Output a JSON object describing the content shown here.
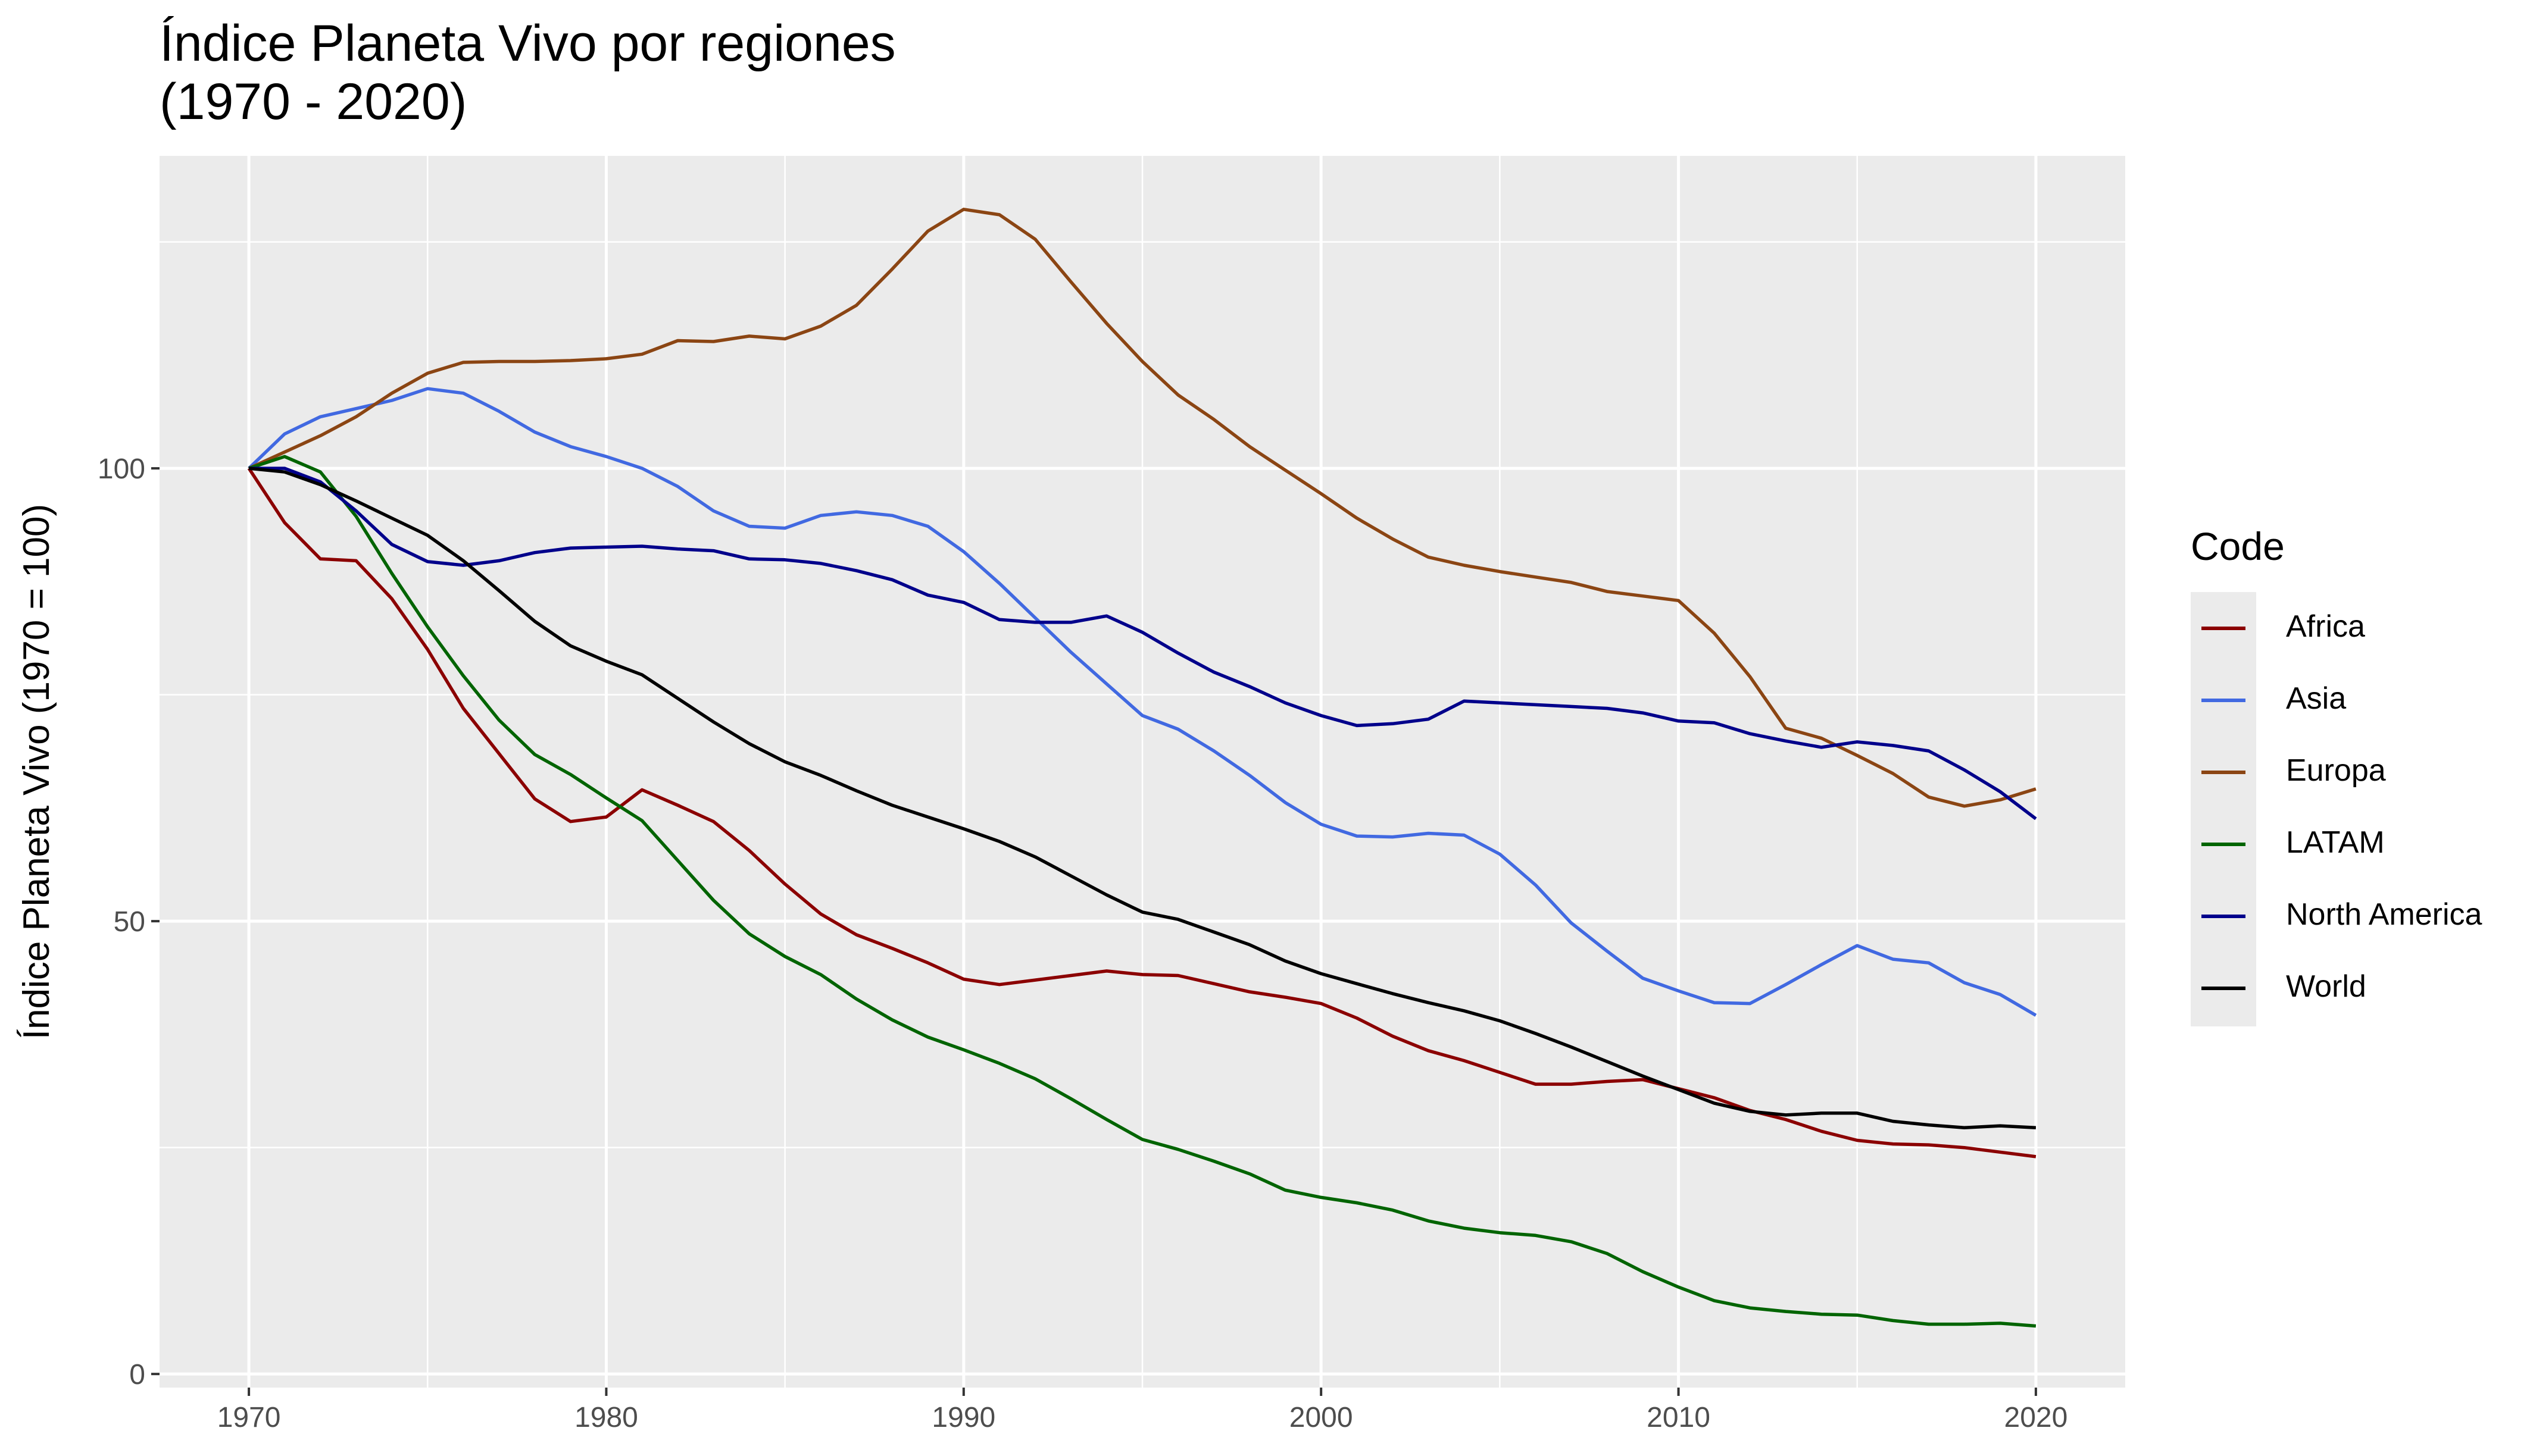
{
  "title_line1": "Índice Planeta Vivo por regiones",
  "title_line2": "(1970 - 2020)",
  "legend_title": "Code",
  "chart_data": {
    "type": "line",
    "title": "Índice Planeta Vivo por regiones\n(1970 - 2020)",
    "xlabel": "",
    "ylabel": "Índice Planeta Vivo (1970 = 100)",
    "xlim": [
      1967.5,
      2022.5
    ],
    "ylim": [
      -1.5,
      134.5
    ],
    "xticks": [
      1970,
      1980,
      1990,
      2000,
      2010,
      2020
    ],
    "yticks": [
      0,
      50,
      100
    ],
    "grid": true,
    "legend_position": "right",
    "x": [
      1970,
      1971,
      1972,
      1973,
      1974,
      1975,
      1976,
      1977,
      1978,
      1979,
      1980,
      1981,
      1982,
      1983,
      1984,
      1985,
      1986,
      1987,
      1988,
      1989,
      1990,
      1991,
      1992,
      1993,
      1994,
      1995,
      1996,
      1997,
      1998,
      1999,
      2000,
      2001,
      2002,
      2003,
      2004,
      2005,
      2006,
      2007,
      2008,
      2009,
      2010,
      2011,
      2012,
      2013,
      2014,
      2015,
      2016,
      2017,
      2018,
      2019,
      2020
    ],
    "series": [
      {
        "name": "Africa",
        "color": "#8b0000",
        "values": [
          100,
          94,
          90,
          89.8,
          85.6,
          80,
          73.5,
          68.5,
          63.5,
          61,
          61.5,
          64.5,
          62.8,
          61,
          57.8,
          54.1,
          50.8,
          48.5,
          47,
          45.4,
          43.6,
          43,
          43.5,
          44,
          44.5,
          44.1,
          44,
          43.1,
          42.2,
          41.6,
          40.9,
          39.3,
          37.3,
          35.7,
          34.6,
          33.3,
          32,
          32,
          32.3,
          32.5,
          31.5,
          30.5,
          29.1,
          28.1,
          26.8,
          25.8,
          25.4,
          25.3,
          25,
          24.5,
          24
        ]
      },
      {
        "name": "Asia",
        "color": "#4169e1",
        "values": [
          100,
          103.8,
          105.7,
          106.6,
          107.5,
          108.8,
          108.3,
          106.3,
          104,
          102.4,
          101.3,
          100,
          98,
          95.3,
          93.6,
          93.4,
          94.8,
          95.2,
          94.8,
          93.6,
          90.8,
          87.3,
          83.5,
          79.7,
          76.2,
          72.7,
          71.2,
          68.8,
          66.1,
          63.1,
          60.7,
          59.4,
          59.3,
          59.7,
          59.5,
          57.4,
          54,
          49.8,
          46.7,
          43.7,
          42.3,
          41,
          40.9,
          43,
          45.2,
          47.3,
          45.8,
          45.4,
          43.2,
          41.9,
          39.6
        ]
      },
      {
        "name": "Europa",
        "color": "#8b4513",
        "values": [
          100,
          101.8,
          103.6,
          105.7,
          108.3,
          110.5,
          111.7,
          111.8,
          111.8,
          111.9,
          112.1,
          112.6,
          114.1,
          114,
          114.6,
          114.3,
          115.7,
          118,
          122,
          126.2,
          128.6,
          128,
          125.3,
          120.6,
          116,
          111.8,
          108.1,
          105.4,
          102.4,
          99.8,
          97.2,
          94.5,
          92.2,
          90.2,
          89.3,
          88.6,
          88,
          87.4,
          86.4,
          85.9,
          85.4,
          81.8,
          77,
          71.3,
          70.2,
          68.3,
          66.3,
          63.7,
          62.7,
          63.4,
          64.6
        ]
      },
      {
        "name": "LATAM",
        "color": "#006400",
        "values": [
          100,
          101.3,
          99.6,
          94.7,
          88.4,
          82.5,
          77.1,
          72.2,
          68.4,
          66.2,
          63.6,
          61.1,
          56.7,
          52.3,
          48.6,
          46.1,
          44.1,
          41.4,
          39.1,
          37.2,
          35.8,
          34.3,
          32.6,
          30.4,
          28.1,
          25.9,
          24.8,
          23.5,
          22.1,
          20.3,
          19.5,
          18.9,
          18.1,
          16.9,
          16.1,
          15.6,
          15.3,
          14.6,
          13.3,
          11.3,
          9.6,
          8.1,
          7.3,
          6.9,
          6.6,
          6.5,
          5.9,
          5.5,
          5.5,
          5.6,
          5.3
        ]
      },
      {
        "name": "North America",
        "color": "#00008b",
        "values": [
          100,
          100,
          98.5,
          95.3,
          91.6,
          89.7,
          89.3,
          89.8,
          90.7,
          91.2,
          91.3,
          91.4,
          91.1,
          90.9,
          90,
          89.9,
          89.5,
          88.7,
          87.7,
          86,
          85.2,
          83.3,
          83,
          83,
          83.7,
          81.9,
          79.6,
          77.5,
          75.9,
          74.1,
          72.7,
          71.6,
          71.8,
          72.3,
          74.3,
          74.1,
          73.9,
          73.7,
          73.5,
          73,
          72.1,
          71.9,
          70.7,
          69.9,
          69.2,
          69.8,
          69.4,
          68.8,
          66.7,
          64.3,
          61.3
        ]
      },
      {
        "name": "World",
        "color": "#000000",
        "values": [
          100,
          99.6,
          98.2,
          96.4,
          94.5,
          92.6,
          89.8,
          86.5,
          83.1,
          80.4,
          78.7,
          77.2,
          74.6,
          72,
          69.6,
          67.6,
          66.1,
          64.4,
          62.8,
          61.5,
          60.2,
          58.8,
          57.1,
          55,
          52.9,
          51,
          50.2,
          48.8,
          47.4,
          45.6,
          44.2,
          43.1,
          42,
          41,
          40.1,
          39,
          37.6,
          36.1,
          34.5,
          32.9,
          31.4,
          29.9,
          29,
          28.6,
          28.8,
          28.8,
          27.9,
          27.5,
          27.2,
          27.4,
          27.2
        ]
      }
    ]
  }
}
